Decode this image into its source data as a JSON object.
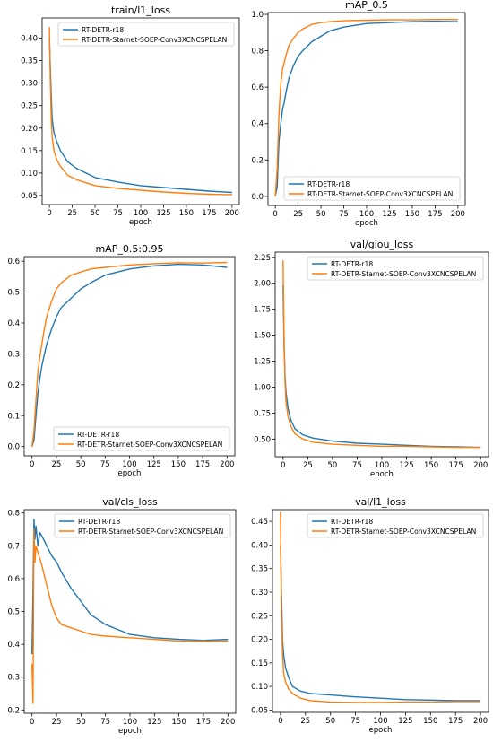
{
  "colors": {
    "series1": "#1f77b4",
    "series2": "#ff7f0e"
  },
  "legend_labels": [
    "RT-DETR-r18",
    "RT-DETR-Starnet-SOEP-Conv3XCNCSPELAN"
  ],
  "chart_data": [
    {
      "type": "line",
      "title": "train/l1_loss",
      "xlabel": "epoch",
      "xlim": [
        -8,
        208
      ],
      "ylim": [
        0.03,
        0.445
      ],
      "xticks": [
        0,
        25,
        50,
        75,
        100,
        125,
        150,
        175,
        200
      ],
      "yticks": [
        0.05,
        0.1,
        0.15,
        0.2,
        0.25,
        0.3,
        0.35,
        0.4
      ],
      "ytick_labels": [
        "0.05",
        "0.10",
        "0.15",
        "0.20",
        "0.25",
        "0.30",
        "0.35",
        "0.40"
      ],
      "legend_position": "top-right",
      "series": [
        {
          "name": "RT-DETR-r18",
          "color": "#1f77b4",
          "x": [
            0,
            1,
            2,
            3,
            5,
            8,
            12,
            20,
            30,
            50,
            75,
            100,
            125,
            150,
            175,
            200
          ],
          "y": [
            0.4,
            0.33,
            0.27,
            0.22,
            0.19,
            0.17,
            0.15,
            0.125,
            0.11,
            0.09,
            0.08,
            0.072,
            0.068,
            0.064,
            0.06,
            0.057
          ]
        },
        {
          "name": "RT-DETR-Starnet-SOEP-Conv3XCNCSPELAN",
          "color": "#ff7f0e",
          "x": [
            0,
            1,
            2,
            3,
            5,
            8,
            12,
            20,
            30,
            50,
            75,
            100,
            125,
            150,
            175,
            200
          ],
          "y": [
            0.425,
            0.3,
            0.22,
            0.18,
            0.15,
            0.13,
            0.115,
            0.095,
            0.085,
            0.072,
            0.066,
            0.062,
            0.058,
            0.055,
            0.053,
            0.052
          ]
        }
      ]
    },
    {
      "type": "line",
      "title": "mAP_0.5",
      "xlabel": "epoch",
      "xlim": [
        -8,
        208
      ],
      "ylim": [
        -0.05,
        1.01
      ],
      "xticks": [
        0,
        25,
        50,
        75,
        100,
        125,
        150,
        175,
        200
      ],
      "yticks": [
        0.0,
        0.2,
        0.4,
        0.6,
        0.8,
        1.0
      ],
      "ytick_labels": [
        "0.0",
        "0.2",
        "0.4",
        "0.6",
        "0.8",
        "1.0"
      ],
      "legend_position": "bottom-right",
      "series": [
        {
          "name": "RT-DETR-r18",
          "color": "#1f77b4",
          "x": [
            0,
            2,
            4,
            6,
            8,
            10,
            12,
            15,
            20,
            25,
            30,
            40,
            50,
            60,
            75,
            100,
            125,
            150,
            175,
            200
          ],
          "y": [
            0.0,
            0.05,
            0.3,
            0.4,
            0.48,
            0.52,
            0.58,
            0.65,
            0.72,
            0.77,
            0.8,
            0.85,
            0.88,
            0.91,
            0.93,
            0.95,
            0.955,
            0.96,
            0.962,
            0.96
          ]
        },
        {
          "name": "RT-DETR-Starnet-SOEP-Conv3XCNCSPELAN",
          "color": "#ff7f0e",
          "x": [
            0,
            2,
            4,
            6,
            8,
            10,
            12,
            15,
            20,
            25,
            30,
            40,
            50,
            60,
            75,
            100,
            125,
            150,
            175,
            200
          ],
          "y": [
            0.0,
            0.15,
            0.45,
            0.62,
            0.7,
            0.74,
            0.78,
            0.83,
            0.87,
            0.9,
            0.92,
            0.945,
            0.955,
            0.96,
            0.965,
            0.968,
            0.97,
            0.97,
            0.972,
            0.972
          ]
        }
      ]
    },
    {
      "type": "line",
      "title": "mAP_0.5:0.95",
      "xlabel": "epoch",
      "xlim": [
        -8,
        208
      ],
      "ylim": [
        -0.03,
        0.615
      ],
      "xticks": [
        0,
        25,
        50,
        75,
        100,
        125,
        150,
        175,
        200
      ],
      "yticks": [
        0.0,
        0.1,
        0.2,
        0.3,
        0.4,
        0.5,
        0.6
      ],
      "ytick_labels": [
        "0.0",
        "0.1",
        "0.2",
        "0.3",
        "0.4",
        "0.5",
        "0.6"
      ],
      "legend_position": "bottom-right",
      "series": [
        {
          "name": "RT-DETR-r18",
          "color": "#1f77b4",
          "x": [
            0,
            2,
            4,
            6,
            8,
            10,
            12,
            15,
            20,
            25,
            30,
            40,
            50,
            60,
            75,
            100,
            125,
            150,
            175,
            200
          ],
          "y": [
            0.0,
            0.02,
            0.1,
            0.17,
            0.22,
            0.26,
            0.29,
            0.33,
            0.38,
            0.42,
            0.45,
            0.48,
            0.51,
            0.53,
            0.555,
            0.575,
            0.585,
            0.59,
            0.588,
            0.58
          ]
        },
        {
          "name": "RT-DETR-Starnet-SOEP-Conv3XCNCSPELAN",
          "color": "#ff7f0e",
          "x": [
            0,
            2,
            4,
            6,
            8,
            10,
            12,
            15,
            20,
            25,
            30,
            40,
            50,
            60,
            75,
            100,
            125,
            150,
            175,
            200
          ],
          "y": [
            0.0,
            0.05,
            0.15,
            0.24,
            0.29,
            0.33,
            0.37,
            0.42,
            0.47,
            0.51,
            0.53,
            0.555,
            0.565,
            0.575,
            0.58,
            0.588,
            0.592,
            0.595,
            0.594,
            0.596
          ]
        }
      ]
    },
    {
      "type": "line",
      "title": "val/giou_loss",
      "xlabel": "epoch",
      "xlim": [
        -8,
        208
      ],
      "ylim": [
        0.33,
        2.3
      ],
      "xticks": [
        0,
        25,
        50,
        75,
        100,
        125,
        150,
        175,
        200
      ],
      "yticks": [
        0.5,
        0.75,
        1.0,
        1.25,
        1.5,
        1.75,
        2.0,
        2.25
      ],
      "ytick_labels": [
        "0.50",
        "0.75",
        "1.00",
        "1.25",
        "1.50",
        "1.75",
        "2.00",
        "2.25"
      ],
      "legend_position": "top-right",
      "series": [
        {
          "name": "RT-DETR-r18",
          "color": "#1f77b4",
          "x": [
            0,
            1,
            2,
            3,
            5,
            8,
            12,
            20,
            30,
            50,
            75,
            100,
            125,
            150,
            175,
            200
          ],
          "y": [
            1.98,
            1.4,
            1.1,
            0.95,
            0.8,
            0.68,
            0.6,
            0.54,
            0.51,
            0.48,
            0.46,
            0.45,
            0.44,
            0.43,
            0.425,
            0.42
          ]
        },
        {
          "name": "RT-DETR-Starnet-SOEP-Conv3XCNCSPELAN",
          "color": "#ff7f0e",
          "x": [
            0,
            1,
            2,
            3,
            5,
            8,
            12,
            20,
            30,
            50,
            75,
            100,
            125,
            150,
            175,
            200
          ],
          "y": [
            2.22,
            1.5,
            1.05,
            0.85,
            0.72,
            0.62,
            0.55,
            0.5,
            0.47,
            0.45,
            0.44,
            0.43,
            0.43,
            0.425,
            0.42,
            0.42
          ]
        }
      ]
    },
    {
      "type": "line",
      "title": "val/cls_loss",
      "xlabel": "epoch",
      "xlim": [
        -8,
        208
      ],
      "ylim": [
        0.19,
        0.81
      ],
      "xticks": [
        0,
        25,
        50,
        75,
        100,
        125,
        150,
        175,
        200
      ],
      "yticks": [
        0.2,
        0.3,
        0.4,
        0.5,
        0.6,
        0.7,
        0.8
      ],
      "ytick_labels": [
        "0.2",
        "0.3",
        "0.4",
        "0.5",
        "0.6",
        "0.7",
        "0.8"
      ],
      "legend_position": "top-right",
      "series": [
        {
          "name": "RT-DETR-r18",
          "color": "#1f77b4",
          "x": [
            0,
            1,
            2,
            3,
            4,
            6,
            8,
            10,
            15,
            20,
            25,
            30,
            40,
            50,
            60,
            75,
            100,
            125,
            150,
            175,
            200
          ],
          "y": [
            0.37,
            0.55,
            0.78,
            0.72,
            0.76,
            0.7,
            0.74,
            0.73,
            0.7,
            0.67,
            0.65,
            0.62,
            0.57,
            0.53,
            0.49,
            0.46,
            0.43,
            0.42,
            0.415,
            0.412,
            0.415
          ]
        },
        {
          "name": "RT-DETR-Starnet-SOEP-Conv3XCNCSPELAN",
          "color": "#ff7f0e",
          "x": [
            0,
            1,
            2,
            3,
            4,
            6,
            8,
            10,
            15,
            20,
            25,
            30,
            40,
            50,
            60,
            75,
            100,
            125,
            150,
            175,
            200
          ],
          "y": [
            0.34,
            0.22,
            0.75,
            0.65,
            0.7,
            0.68,
            0.66,
            0.64,
            0.58,
            0.52,
            0.48,
            0.46,
            0.45,
            0.44,
            0.43,
            0.425,
            0.42,
            0.415,
            0.41,
            0.41,
            0.41
          ]
        }
      ]
    },
    {
      "type": "line",
      "title": "val/l1_loss",
      "xlabel": "epoch",
      "xlim": [
        -8,
        208
      ],
      "ylim": [
        0.045,
        0.475
      ],
      "xticks": [
        0,
        25,
        50,
        75,
        100,
        125,
        150,
        175,
        200
      ],
      "yticks": [
        0.05,
        0.1,
        0.15,
        0.2,
        0.25,
        0.3,
        0.35,
        0.4,
        0.45
      ],
      "ytick_labels": [
        "0.05",
        "0.10",
        "0.15",
        "0.20",
        "0.25",
        "0.30",
        "0.35",
        "0.40",
        "0.45"
      ],
      "legend_position": "top-right",
      "series": [
        {
          "name": "RT-DETR-r18",
          "color": "#1f77b4",
          "x": [
            0,
            1,
            2,
            3,
            5,
            8,
            12,
            20,
            30,
            50,
            75,
            100,
            125,
            150,
            175,
            200
          ],
          "y": [
            0.4,
            0.3,
            0.2,
            0.17,
            0.14,
            0.12,
            0.1,
            0.09,
            0.085,
            0.082,
            0.078,
            0.075,
            0.072,
            0.071,
            0.07,
            0.07
          ]
        },
        {
          "name": "RT-DETR-Starnet-SOEP-Conv3XCNCSPELAN",
          "color": "#ff7f0e",
          "x": [
            0,
            1,
            2,
            3,
            5,
            8,
            12,
            20,
            30,
            50,
            75,
            100,
            125,
            150,
            175,
            200
          ],
          "y": [
            0.47,
            0.25,
            0.17,
            0.13,
            0.11,
            0.095,
            0.085,
            0.075,
            0.07,
            0.067,
            0.066,
            0.066,
            0.067,
            0.067,
            0.068,
            0.068
          ]
        }
      ]
    }
  ]
}
